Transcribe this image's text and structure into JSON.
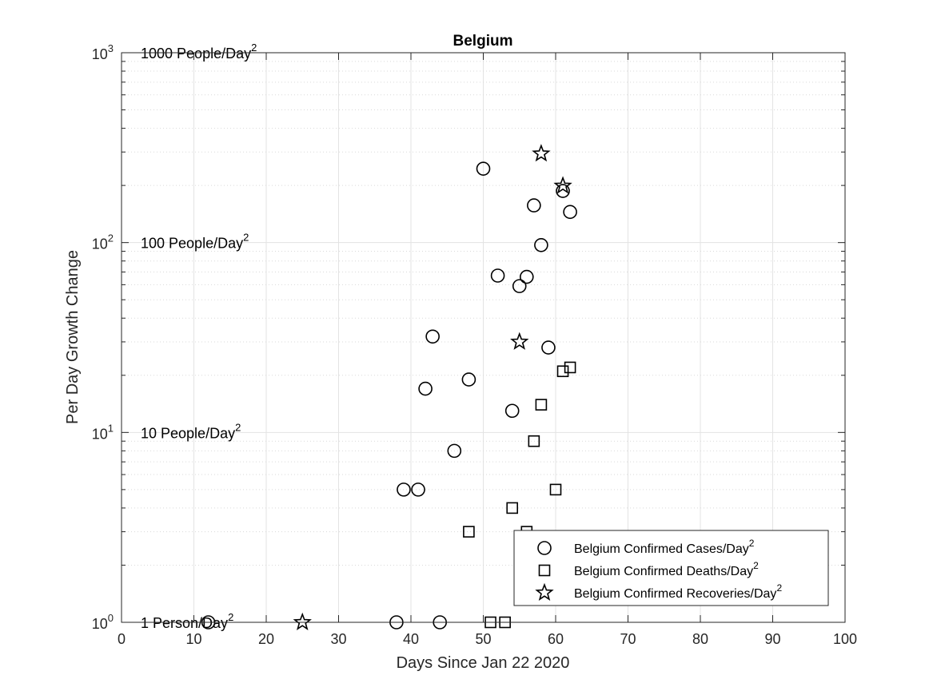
{
  "chart_data": {
    "type": "scatter",
    "title": "Belgium",
    "xlabel": "Days Since Jan 22 2020",
    "ylabel": "Per Day Growth Change",
    "xlim": [
      0,
      100
    ],
    "ylim": [
      1,
      1000
    ],
    "yscale": "log",
    "grid": true,
    "legend_position": "bottom-right",
    "x_ticks": [
      "0",
      "10",
      "20",
      "30",
      "40",
      "50",
      "60",
      "70",
      "80",
      "90",
      "100"
    ],
    "x_tick_values": [
      0,
      10,
      20,
      30,
      40,
      50,
      60,
      70,
      80,
      90,
      100
    ],
    "y_ticks": [
      {
        "base": "10",
        "exp": "0",
        "value": 1
      },
      {
        "base": "10",
        "exp": "1",
        "value": 10
      },
      {
        "base": "10",
        "exp": "2",
        "value": 100
      },
      {
        "base": "10",
        "exp": "3",
        "value": 1000
      }
    ],
    "reference_labels": [
      {
        "text": "1 Person/Day",
        "sup": "2",
        "value": 1
      },
      {
        "text": "10 People/Day",
        "sup": "2",
        "value": 10
      },
      {
        "text": "100 People/Day",
        "sup": "2",
        "value": 100
      },
      {
        "text": "1000 People/Day",
        "sup": "2",
        "value": 1000
      }
    ],
    "series": [
      {
        "name": "Belgium Confirmed Cases/Day",
        "name_sup": "2",
        "marker": "circle",
        "points": [
          [
            12,
            1
          ],
          [
            38,
            1
          ],
          [
            39,
            5
          ],
          [
            41,
            5
          ],
          [
            42,
            17
          ],
          [
            43,
            32
          ],
          [
            44,
            1
          ],
          [
            46,
            8
          ],
          [
            48,
            19
          ],
          [
            50,
            245
          ],
          [
            52,
            67
          ],
          [
            54,
            13
          ],
          [
            55,
            59
          ],
          [
            56,
            66
          ],
          [
            57,
            157
          ],
          [
            58,
            97
          ],
          [
            59,
            28
          ],
          [
            61,
            187
          ],
          [
            62,
            145
          ]
        ]
      },
      {
        "name": "Belgium Confirmed Deaths/Day",
        "name_sup": "2",
        "marker": "square",
        "points": [
          [
            48,
            3
          ],
          [
            51,
            1
          ],
          [
            53,
            1
          ],
          [
            54,
            4
          ],
          [
            56,
            3
          ],
          [
            57,
            9
          ],
          [
            58,
            14
          ],
          [
            60,
            5
          ],
          [
            61,
            21
          ],
          [
            62,
            22
          ]
        ]
      },
      {
        "name": "Belgium Confirmed Recoveries/Day",
        "name_sup": "2",
        "marker": "star",
        "points": [
          [
            25,
            1
          ],
          [
            55,
            30
          ],
          [
            58,
            294
          ],
          [
            61,
            199
          ]
        ]
      }
    ]
  }
}
